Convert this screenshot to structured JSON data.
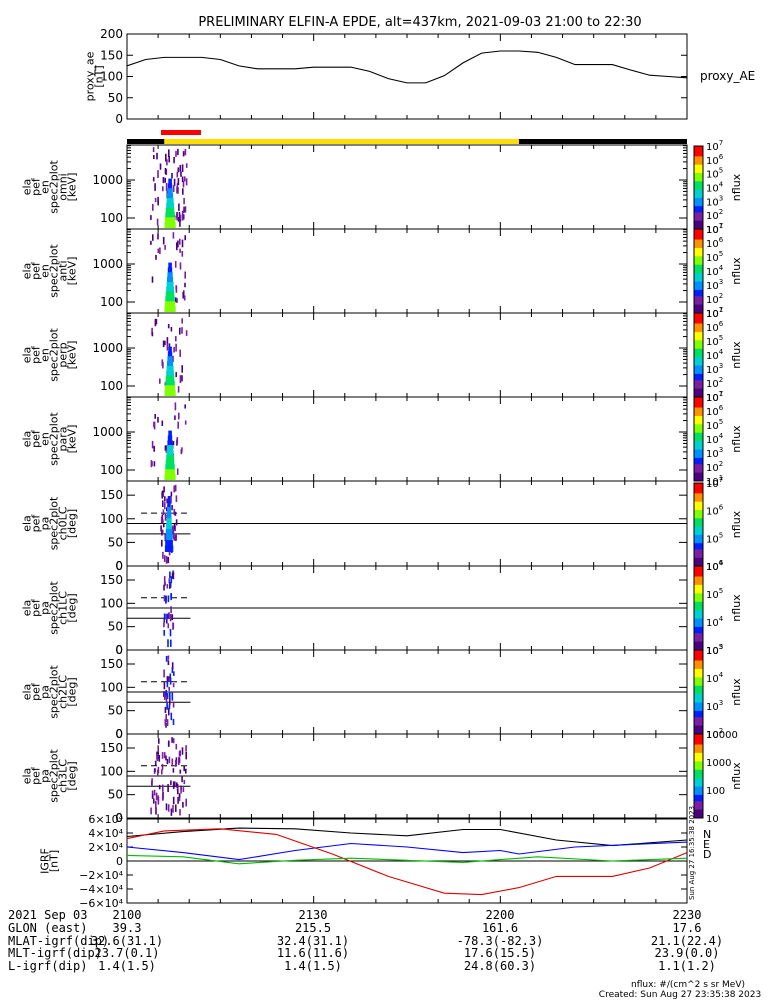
{
  "title": "PRELIMINARY ELFIN-A EPDE, alt=437km, 2021-09-03 21:00 to 22:30",
  "colors": {
    "red_bar": "#ff0000",
    "yellow_bar": "#ffdd00",
    "black_bar": "#000000",
    "line_black": "#000000",
    "line_blue": "#0000ff",
    "line_red": "#dd0000",
    "line_green": "#00bb00"
  },
  "chart_data": [
    {
      "type": "line",
      "panel": "proxy_ae",
      "ylabel": [
        "proxy_ae",
        "[nT]"
      ],
      "legend": "proxy_AE",
      "ylim": [
        0,
        200
      ],
      "yticks": [
        0,
        50,
        100,
        150,
        200
      ],
      "series": [
        {
          "name": "proxy_AE",
          "x": [
            21.0,
            21.05,
            21.1,
            21.15,
            21.2,
            21.25,
            21.3,
            21.35,
            21.4,
            21.45,
            21.5,
            21.55,
            21.6,
            21.65,
            21.7,
            21.75,
            21.8,
            21.85,
            21.9,
            21.95,
            22.0,
            22.05,
            22.1,
            22.15,
            22.2,
            22.25,
            22.3,
            22.35,
            22.4,
            22.45,
            22.5
          ],
          "y": [
            125,
            140,
            145,
            145,
            145,
            140,
            125,
            118,
            118,
            118,
            122,
            122,
            122,
            112,
            95,
            85,
            85,
            102,
            132,
            155,
            160,
            160,
            157,
            145,
            128,
            128,
            128,
            115,
            103,
            100,
            97
          ]
        }
      ]
    },
    {
      "type": "heatmap",
      "panel": "omni",
      "ylabel": [
        "ela",
        "pef",
        "en",
        "spec2plot",
        "omni",
        "[keV]"
      ],
      "yscale": "log",
      "yticks": [
        "100",
        "1000"
      ],
      "cbar_label": "nflux",
      "cbar_ticks": [
        "10^1",
        "10^2",
        "10^3",
        "10^4",
        "10^5",
        "10^6",
        "10^7"
      ]
    },
    {
      "type": "heatmap",
      "panel": "anti",
      "ylabel": [
        "ela",
        "pef",
        "en",
        "spec2plot",
        "anti",
        "[keV]"
      ],
      "yscale": "log",
      "yticks": [
        "100",
        "1000"
      ],
      "cbar_label": "nflux",
      "cbar_ticks": [
        "10^1",
        "10^2",
        "10^3",
        "10^4",
        "10^5",
        "10^6",
        "10^7"
      ]
    },
    {
      "type": "heatmap",
      "panel": "perp",
      "ylabel": [
        "ela",
        "pef",
        "en",
        "spec2plot",
        "perp",
        "[keV]"
      ],
      "yscale": "log",
      "yticks": [
        "100",
        "1000"
      ],
      "cbar_label": "nflux",
      "cbar_ticks": [
        "10^1",
        "10^2",
        "10^3",
        "10^4",
        "10^5",
        "10^6",
        "10^7"
      ]
    },
    {
      "type": "heatmap",
      "panel": "para",
      "ylabel": [
        "ela",
        "pef",
        "en",
        "spec2plot",
        "para",
        "[keV]"
      ],
      "yscale": "log",
      "yticks": [
        "100",
        "1000"
      ],
      "cbar_label": "nflux",
      "cbar_ticks": [
        "10^1",
        "10^2",
        "10^3",
        "10^4",
        "10^5",
        "10^6",
        "10^7"
      ]
    },
    {
      "type": "heatmap",
      "panel": "ch0LC",
      "ylabel": [
        "ela",
        "pef",
        "pa",
        "spec2plot",
        "ch0LC",
        "[deg]"
      ],
      "ylim": [
        0,
        180
      ],
      "yticks": [
        0,
        50,
        100,
        150
      ],
      "cbar_label": "nflux",
      "cbar_ticks": [
        "10^4",
        "10^5",
        "10^6",
        "10^7"
      ]
    },
    {
      "type": "heatmap",
      "panel": "ch1LC",
      "ylabel": [
        "ela",
        "pef",
        "pa",
        "spec2plot",
        "ch1LC",
        "[deg]"
      ],
      "ylim": [
        0,
        180
      ],
      "yticks": [
        0,
        50,
        100,
        150
      ],
      "cbar_label": "nflux",
      "cbar_ticks": [
        "10^3",
        "10^4",
        "10^5",
        "10^6"
      ]
    },
    {
      "type": "heatmap",
      "panel": "ch2LC",
      "ylabel": [
        "ela",
        "pef",
        "pa",
        "spec2plot",
        "ch2LC",
        "[deg]"
      ],
      "ylim": [
        0,
        180
      ],
      "yticks": [
        0,
        50,
        100,
        150
      ],
      "cbar_label": "nflux",
      "cbar_ticks": [
        "10^2",
        "10^3",
        "10^4",
        "10^5"
      ]
    },
    {
      "type": "heatmap",
      "panel": "ch3LC",
      "ylabel": [
        "ela",
        "pef",
        "pa",
        "spec2plot",
        "ch3LC",
        "[deg]"
      ],
      "ylim": [
        0,
        180
      ],
      "yticks": [
        0,
        50,
        100,
        150
      ],
      "cbar_label": "nflux",
      "cbar_ticks": [
        "10",
        "100",
        "1000",
        "10000"
      ]
    },
    {
      "type": "line",
      "panel": "igrf",
      "ylabel": [
        "IGRF",
        "[nT]"
      ],
      "ylim": [
        -60000,
        60000
      ],
      "yticks": [
        "−6×10⁴",
        "−4×10⁴",
        "−2×10⁴",
        "0",
        "2×10⁴",
        "4×10⁴",
        "6×10⁴"
      ],
      "legend": [
        "N",
        "E",
        "D"
      ],
      "series": [
        {
          "color": "#000000",
          "x": [
            21.0,
            21.15,
            21.3,
            21.45,
            21.6,
            21.75,
            21.9,
            22.0,
            22.15,
            22.3,
            22.5
          ],
          "y": [
            35000,
            42000,
            47000,
            46000,
            40000,
            36000,
            45000,
            45000,
            30000,
            22000,
            30000
          ]
        },
        {
          "color": "#0000ff",
          "x": [
            21.0,
            21.15,
            21.3,
            21.45,
            21.6,
            21.75,
            21.9,
            22.0,
            22.05,
            22.2,
            22.5
          ],
          "y": [
            20000,
            12000,
            2000,
            15000,
            25000,
            20000,
            12000,
            15000,
            10000,
            20000,
            27000
          ]
        },
        {
          "color": "#dd0000",
          "x": [
            21.0,
            21.1,
            21.25,
            21.4,
            21.55,
            21.7,
            21.85,
            21.95,
            22.05,
            22.15,
            22.3,
            22.4,
            22.5
          ],
          "y": [
            32000,
            43000,
            46000,
            38000,
            10000,
            -22000,
            -46000,
            -48000,
            -38000,
            -22000,
            -22000,
            -10000,
            12000
          ]
        },
        {
          "color": "#00bb00",
          "x": [
            21.0,
            21.15,
            21.3,
            21.45,
            21.6,
            21.75,
            21.9,
            22.0,
            22.1,
            22.3,
            22.5
          ],
          "y": [
            8000,
            6000,
            -4000,
            1000,
            4000,
            1000,
            -2000,
            2000,
            6000,
            0,
            4000
          ]
        }
      ]
    }
  ],
  "time_axis": {
    "labels": [
      "2100",
      "2130",
      "2200",
      "2230"
    ],
    "rows": [
      {
        "label": "2021 Sep 03",
        "values": [
          "2100",
          "2130",
          "2200",
          "2230"
        ]
      },
      {
        "label": "GLON (east)",
        "values": [
          "39.3",
          "215.5",
          "161.6",
          "17.6"
        ]
      },
      {
        "label": "MLAT-igrf(dip)",
        "values": [
          "32.6(31.1)",
          "32.4(31.1)",
          "-78.3(-82.3)",
          "21.1(22.4)"
        ]
      },
      {
        "label": "MLT-igrf(dip)",
        "values": [
          "23.7(0.1)",
          "11.6(11.6)",
          "17.6(15.5)",
          "23.9(0.0)"
        ]
      },
      {
        "label": "L-igrf(dip)",
        "values": [
          "1.4(1.5)",
          "1.4(1.5)",
          "24.8(60.3)",
          "1.1(1.2)"
        ]
      }
    ]
  },
  "footer": {
    "units": "nflux: #/(cm^2 s sr MeV)",
    "created": "Created: Sun Aug 27 23:35:38 2023"
  },
  "side_stamp": "Sun Aug 27 16:35:38 2023"
}
